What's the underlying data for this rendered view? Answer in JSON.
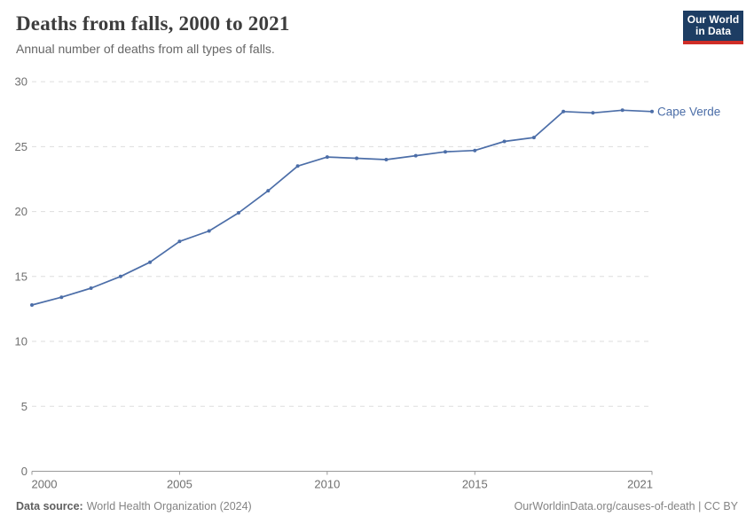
{
  "header": {
    "title": "Deaths from falls, 2000 to 2021",
    "subtitle": "Annual number of deaths from all types of falls.",
    "logo": {
      "line1": "Our World",
      "line2": "in Data",
      "bg_color": "#1d3d63",
      "accent_color": "#cf2d27"
    }
  },
  "chart_data": {
    "type": "line",
    "title": "Deaths from falls, 2000 to 2021",
    "subtitle": "Annual number of deaths from all types of falls.",
    "x": [
      2000,
      2001,
      2002,
      2003,
      2004,
      2005,
      2006,
      2007,
      2008,
      2009,
      2010,
      2011,
      2012,
      2013,
      2014,
      2015,
      2016,
      2017,
      2018,
      2019,
      2020,
      2021
    ],
    "series": [
      {
        "name": "Cape Verde",
        "color": "#4c6ea8",
        "values": [
          12.8,
          13.4,
          14.1,
          15.0,
          16.1,
          17.7,
          18.5,
          19.9,
          21.6,
          23.5,
          24.2,
          24.1,
          24.0,
          24.3,
          24.6,
          24.7,
          25.4,
          25.7,
          27.7,
          27.6,
          27.8,
          27.7
        ]
      }
    ],
    "xlabel": "",
    "ylabel": "",
    "ylim": [
      0,
      30
    ],
    "yticks": [
      0,
      5,
      10,
      15,
      20,
      25,
      30
    ],
    "xticks": [
      2000,
      2005,
      2010,
      2015,
      2021
    ],
    "grid": "horizontal-dashed",
    "legend_position": "line-end-label",
    "axis_color": "#9a9a9a",
    "grid_color": "#dddddd",
    "tick_label_color": "#6f6f6f"
  },
  "footer": {
    "datasource_label": "Data source:",
    "datasource_value": "World Health Organization (2024)",
    "credit": "OurWorldinData.org/causes-of-death | CC BY"
  }
}
